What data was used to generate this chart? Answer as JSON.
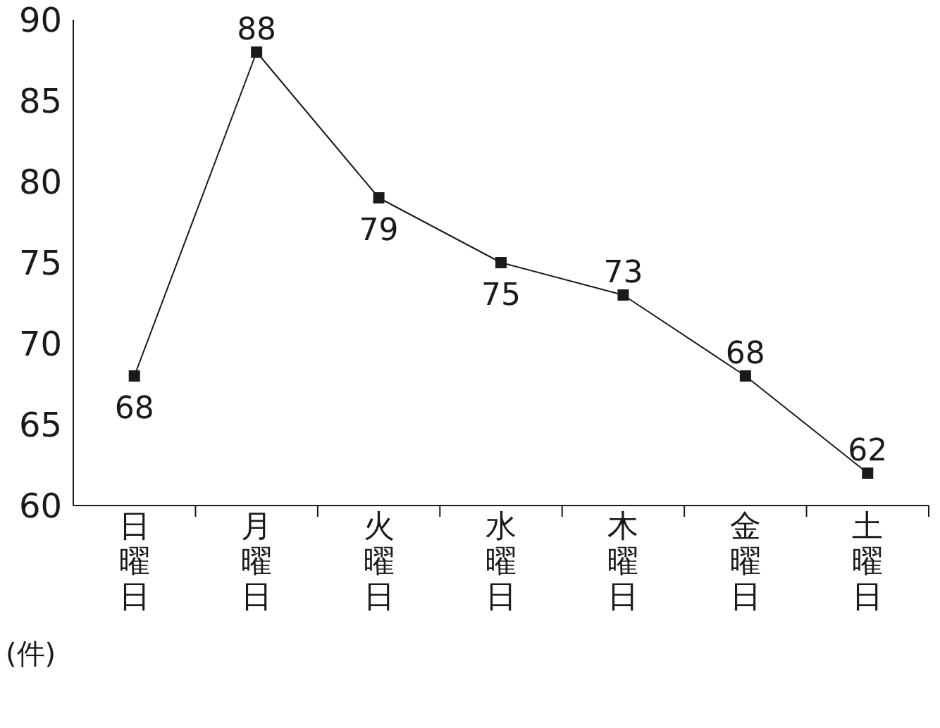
{
  "chart_data": {
    "type": "line",
    "ylabel": "(件)",
    "categories": [
      "日曜日",
      "月曜日",
      "火曜日",
      "水曜日",
      "木曜日",
      "金曜日",
      "土曜日"
    ],
    "series": [
      {
        "color": "#1a1a1a",
        "values": [
          68,
          88,
          79,
          75,
          73,
          68,
          62
        ]
      }
    ],
    "ylim": [
      60,
      90
    ],
    "yticks": [
      60,
      65,
      70,
      75,
      80,
      85,
      90
    ],
    "grid": false,
    "marker": "square",
    "line_style": "solid",
    "data_labels": true
  }
}
